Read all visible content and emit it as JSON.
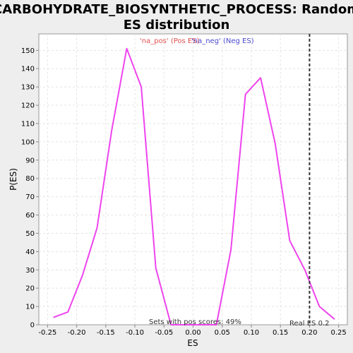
{
  "chart_data": {
    "type": "line",
    "title_lines": [
      "CARBOHYDRATE_BIOSYNTHETIC_PROCESS: Random",
      "ES distribution"
    ],
    "xlabel": "ES",
    "ylabel": "P(ES)",
    "xlim": [
      -0.265,
      0.265
    ],
    "ylim": [
      0,
      159
    ],
    "x_ticks": [
      "-0.25",
      "-0.20",
      "-0.15",
      "-0.10",
      "-0.05",
      "0.00",
      "0.05",
      "0.10",
      "0.15",
      "0.20",
      "0.25"
    ],
    "x_tick_values": [
      -0.25,
      -0.2,
      -0.15,
      -0.1,
      -0.05,
      0.0,
      0.05,
      0.1,
      0.15,
      0.2,
      0.25
    ],
    "y_ticks": [
      0,
      10,
      20,
      30,
      40,
      50,
      60,
      70,
      80,
      90,
      100,
      110,
      120,
      130,
      140,
      150
    ],
    "grid": true,
    "legend": [
      {
        "label": "'na_pos' (Pos ES)",
        "color": "#e05050"
      },
      {
        "label": "'na_neg' (Neg ES)",
        "color": "#4a4ad0"
      }
    ],
    "series": [
      {
        "color": "#ee44ee",
        "x": [
          -0.24,
          -0.215,
          -0.19,
          -0.165,
          -0.14,
          -0.114,
          -0.089,
          -0.064,
          -0.038,
          0.04,
          0.065,
          0.09,
          0.116,
          0.141,
          0.166,
          0.192,
          0.217,
          0.243
        ],
        "y": [
          4,
          7,
          27,
          53,
          106,
          151,
          130,
          31,
          0,
          0,
          41,
          126,
          135,
          99,
          46,
          30,
          10,
          3
        ]
      }
    ],
    "real_es": 0.2,
    "real_es_label": "Real ES 0.2",
    "annotation": "Sets with pos scores: 49%",
    "colors": {
      "line": "#ee44ee",
      "real_es_line": "#333333",
      "background": "#eeeeee",
      "plot_bg": "#ffffff"
    }
  }
}
